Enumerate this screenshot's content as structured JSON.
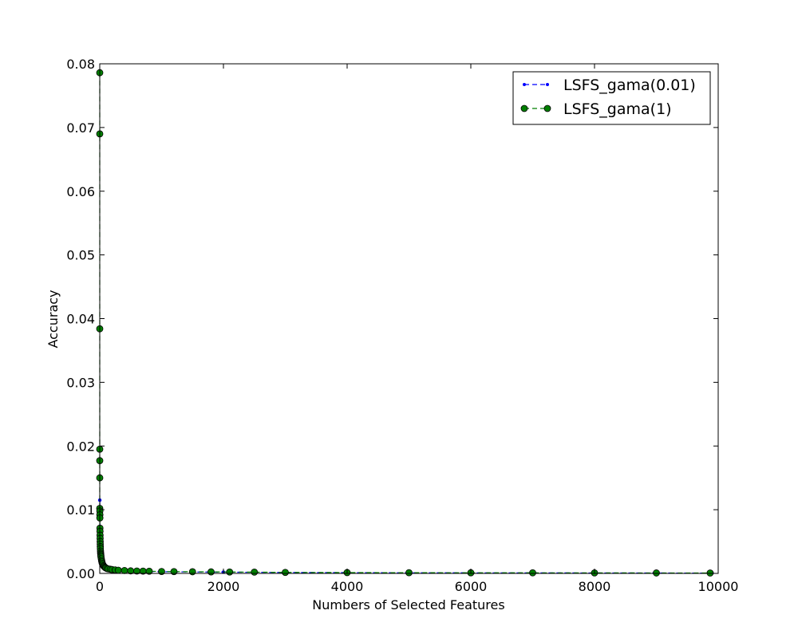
{
  "chart_data": {
    "type": "line",
    "title": "",
    "xlabel": "Numbers of Selected Features",
    "ylabel": "Accuracy",
    "xlim": [
      0,
      10000
    ],
    "ylim": [
      0,
      0.08
    ],
    "xticks": [
      "0",
      "2000",
      "4000",
      "6000",
      "8000",
      "10000"
    ],
    "yticks": [
      "0.00",
      "0.01",
      "0.02",
      "0.03",
      "0.04",
      "0.05",
      "0.06",
      "0.07",
      "0.08"
    ],
    "grid": false,
    "legend_position": "top-right",
    "series": [
      {
        "name": "LSFS_gama(0.01)",
        "color": "#0000ff",
        "marker": "small-dot",
        "linestyle": "dashed",
        "x": [
          1,
          3,
          5,
          10,
          15,
          20,
          30,
          40,
          50,
          60,
          80,
          100,
          130,
          160,
          200,
          300,
          500,
          800,
          1200,
          2000,
          3000,
          4000,
          5000,
          6000,
          7000,
          8000,
          9000,
          9900
        ],
        "y": [
          0.0115,
          0.0085,
          0.0068,
          0.0052,
          0.0044,
          0.0038,
          0.003,
          0.0025,
          0.0021,
          0.0018,
          0.0014,
          0.0011,
          0.0009,
          0.00075,
          0.0006,
          0.00045,
          0.00035,
          0.0003,
          0.00025,
          0.0002,
          0.00015,
          0.00012,
          0.0001,
          9e-05,
          8e-05,
          7e-05,
          6e-05,
          5e-05
        ]
      },
      {
        "name": "LSFS_gama(1)",
        "color": "#007f00",
        "marker": "circle",
        "linestyle": "dashed",
        "x": [
          0,
          0,
          0,
          0,
          0,
          0,
          0,
          2,
          2,
          2,
          3,
          4,
          5,
          6,
          7,
          8,
          9,
          10,
          12,
          14,
          16,
          18,
          20,
          25,
          30,
          35,
          40,
          50,
          60,
          70,
          80,
          90,
          100,
          120,
          140,
          170,
          200,
          250,
          300,
          400,
          500,
          600,
          700,
          800,
          1000,
          1200,
          1500,
          1800,
          2100,
          2500,
          3000,
          4000,
          5000,
          6000,
          7000,
          8000,
          9000,
          9870
        ],
        "y": [
          0.0786,
          0.069,
          0.0384,
          0.0195,
          0.0177,
          0.015,
          0.0102,
          0.0098,
          0.0092,
          0.0087,
          0.0071,
          0.0066,
          0.006,
          0.0055,
          0.005,
          0.0046,
          0.0042,
          0.0039,
          0.0035,
          0.0032,
          0.003,
          0.0028,
          0.0026,
          0.0023,
          0.002,
          0.0018,
          0.0016,
          0.0014,
          0.0012,
          0.0011,
          0.001,
          0.0009,
          0.00085,
          0.00075,
          0.0007,
          0.00065,
          0.0006,
          0.00055,
          0.0005,
          0.00045,
          0.0004,
          0.00038,
          0.00036,
          0.00034,
          0.0003,
          0.00028,
          0.00026,
          0.00024,
          0.00022,
          0.0002,
          0.00016,
          0.00013,
          0.00011,
          0.0001,
          9e-05,
          8e-05,
          7e-05,
          6e-05
        ]
      }
    ]
  }
}
